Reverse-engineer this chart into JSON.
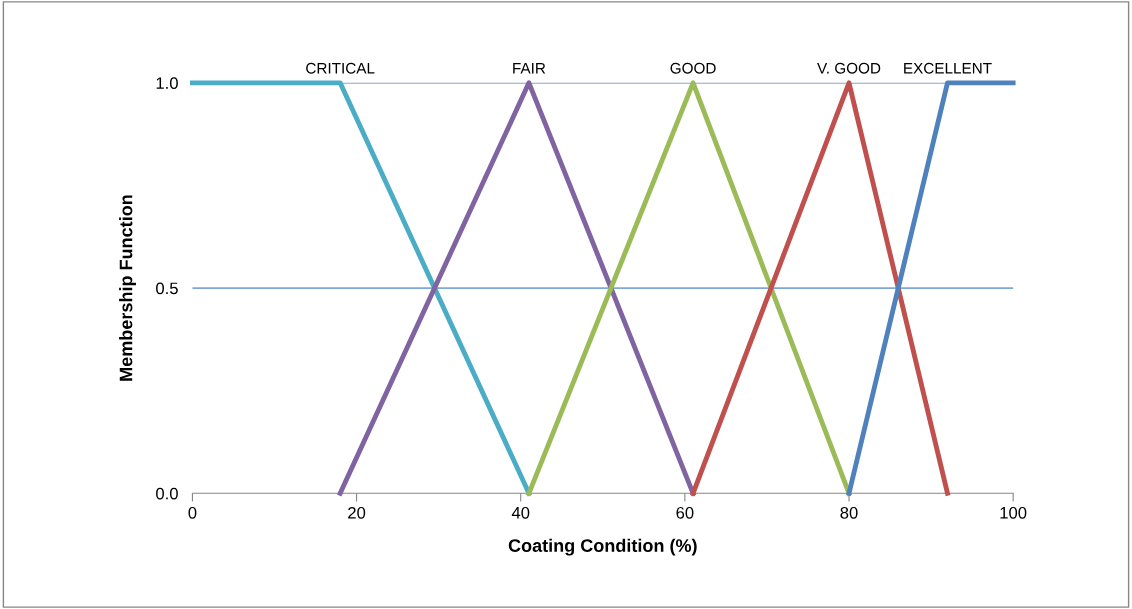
{
  "chart_data": {
    "type": "line",
    "xlabel": "Coating Condition (%)",
    "ylabel": "Membership Function",
    "xlim": [
      0,
      100
    ],
    "xticks": [
      0,
      20,
      40,
      60,
      80,
      100
    ],
    "ylim": [
      0,
      1
    ],
    "yticks": [
      {
        "value": 0,
        "label": "0.0"
      },
      {
        "value": 0.5,
        "label": "0.5"
      },
      {
        "value": 1,
        "label": "1.0"
      }
    ],
    "ref_lines": [
      {
        "axis": "y",
        "value": 0.5,
        "color": "#7fa7d9"
      },
      {
        "axis": "y",
        "value": 1,
        "color": "#7fa7d9"
      }
    ],
    "legend": false,
    "marker": "none",
    "line_style": "solid",
    "series": [
      {
        "name": "CRITICAL",
        "color": "#4bacc6",
        "x": [
          0,
          18,
          41
        ],
        "values": [
          1,
          1,
          0
        ]
      },
      {
        "name": "FAIR",
        "color": "#8064a2",
        "x": [
          18,
          41,
          61
        ],
        "values": [
          0,
          1,
          0
        ]
      },
      {
        "name": "GOOD",
        "color": "#9bbb59",
        "x": [
          41,
          61,
          80
        ],
        "values": [
          0,
          1,
          0
        ]
      },
      {
        "name": "V. GOOD",
        "color": "#c0504d",
        "x": [
          61,
          80,
          92
        ],
        "values": [
          0,
          1,
          0
        ]
      },
      {
        "name": "EXCELLENT",
        "color": "#4f81bd",
        "x": [
          80,
          92,
          100
        ],
        "values": [
          0,
          1,
          1
        ]
      }
    ]
  }
}
